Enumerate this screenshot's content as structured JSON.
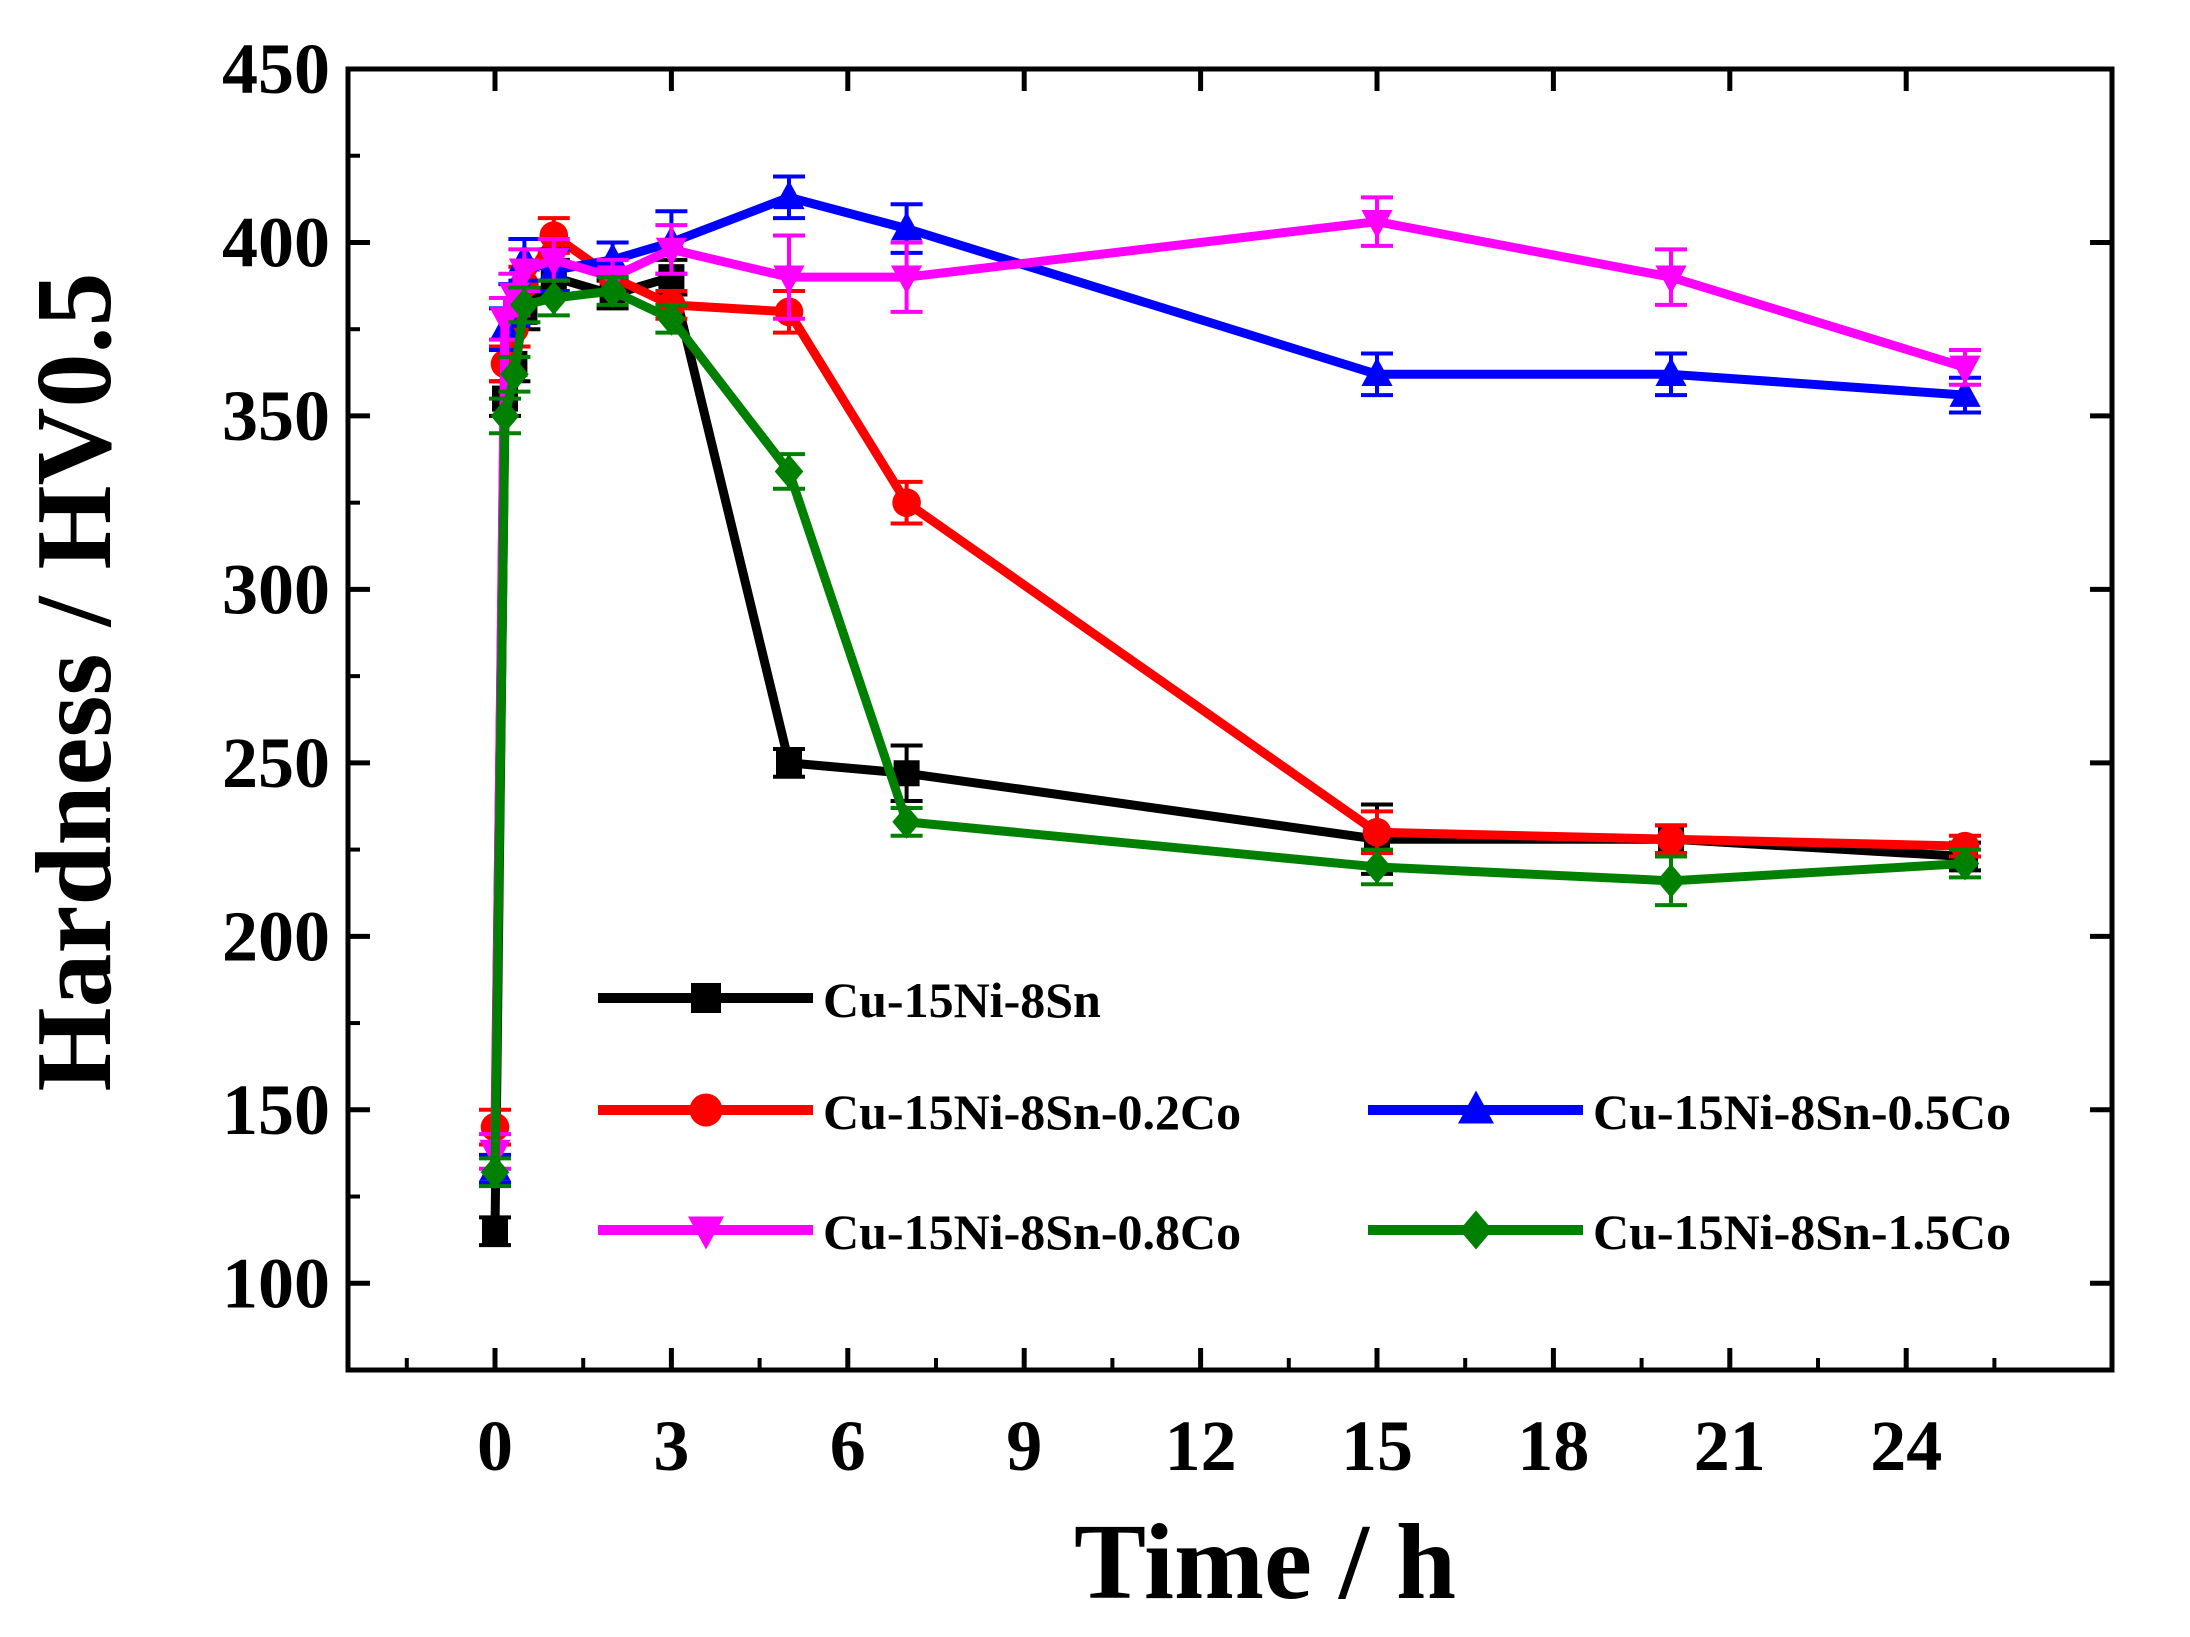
{
  "chart_data": {
    "type": "line",
    "title": "",
    "xlabel": "Time / h",
    "ylabel": "Hardness / HV0.5",
    "xlim": [
      -2.5,
      27.5
    ],
    "ylim": [
      75,
      450
    ],
    "x_ticks": [
      0,
      3,
      6,
      9,
      12,
      15,
      18,
      21,
      24
    ],
    "x_tick_labels": [
      "0",
      "3",
      "6",
      "9",
      "12",
      "15",
      "18",
      "21",
      "24"
    ],
    "y_ticks": [
      100,
      150,
      200,
      250,
      300,
      350,
      400,
      450
    ],
    "y_tick_labels": [
      "100",
      "150",
      "200",
      "250",
      "300",
      "350",
      "400",
      "450"
    ],
    "grid": false,
    "legend_position": "bottom-left inside",
    "series": [
      {
        "name": "Cu-15Ni-8Sn",
        "color": "#000000",
        "marker": "square",
        "x": [
          0,
          0.17,
          0.33,
          0.5,
          1,
          2,
          3,
          5,
          7,
          15,
          20,
          25
        ],
        "y": [
          115,
          355,
          365,
          380,
          390,
          385,
          390,
          250,
          247,
          228,
          228,
          223
        ],
        "err": [
          4,
          5,
          5,
          5,
          5,
          4,
          5,
          4,
          8,
          10,
          4,
          4
        ]
      },
      {
        "name": "Cu-15Ni-8Sn-0.2Co",
        "color": "#ff0000",
        "marker": "circle",
        "x": [
          0,
          0.17,
          0.33,
          0.5,
          1,
          2,
          3,
          5,
          7,
          15,
          20,
          25
        ],
        "y": [
          145,
          365,
          375,
          388,
          402,
          390,
          382,
          380,
          325,
          230,
          228,
          226
        ],
        "err": [
          5,
          5,
          5,
          5,
          5,
          5,
          4,
          6,
          6,
          6,
          4,
          3
        ]
      },
      {
        "name": "Cu-15Ni-8Sn-0.5Co",
        "color": "#0000ff",
        "marker": "triangle-up",
        "x": [
          0,
          0.17,
          0.33,
          0.5,
          1,
          2,
          3,
          5,
          7,
          15,
          20,
          25
        ],
        "y": [
          133,
          375,
          382,
          395,
          392,
          395,
          400,
          413,
          404,
          362,
          362,
          356
        ],
        "err": [
          4,
          6,
          6,
          6,
          6,
          5,
          9,
          6,
          7,
          6,
          6,
          5
        ]
      },
      {
        "name": "Cu-15Ni-8Sn-0.8Co",
        "color": "#ff00ff",
        "marker": "triangle-down",
        "x": [
          0,
          0.17,
          0.33,
          0.5,
          1,
          2,
          3,
          5,
          7,
          15,
          20,
          25
        ],
        "y": [
          138,
          378,
          385,
          392,
          395,
          390,
          398,
          390,
          390,
          406,
          390,
          364
        ],
        "err": [
          5,
          6,
          6,
          6,
          6,
          5,
          7,
          12,
          10,
          7,
          8,
          5
        ]
      },
      {
        "name": "Cu-15Ni-8Sn-1.5Co",
        "color": "#008000",
        "marker": "diamond",
        "x": [
          0,
          0.17,
          0.33,
          0.5,
          1,
          2,
          3,
          5,
          7,
          15,
          20,
          25
        ],
        "y": [
          132,
          350,
          362,
          382,
          384,
          386,
          378,
          334,
          233,
          220,
          216,
          221
        ],
        "err": [
          4,
          5,
          5,
          5,
          5,
          4,
          4,
          5,
          4,
          5,
          7,
          4
        ]
      }
    ]
  }
}
